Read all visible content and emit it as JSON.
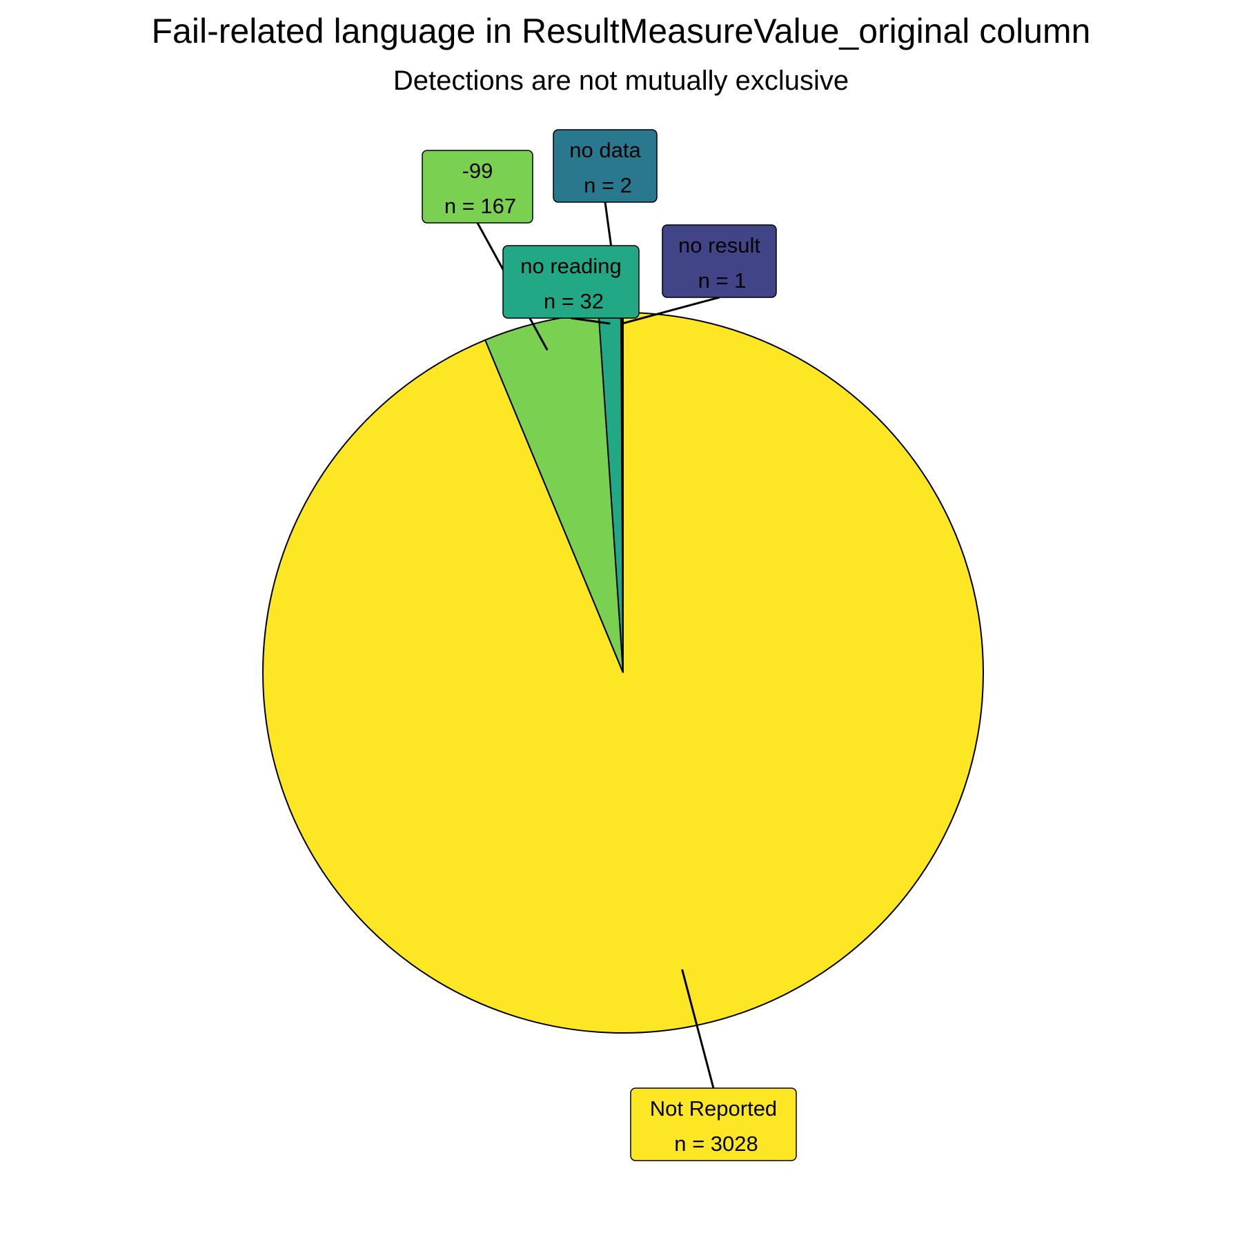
{
  "chart_data": {
    "type": "pie",
    "title": "Fail-related language in ResultMeasureValue_original column",
    "subtitle": "Detections are not mutually exclusive",
    "slices": [
      {
        "label": "no result",
        "count_text": "n = 1",
        "value": 1,
        "color": "#414487"
      },
      {
        "label": "no data",
        "count_text": "n = 2",
        "value": 2,
        "color": "#2A788E"
      },
      {
        "label": "no reading",
        "count_text": "n = 32",
        "value": 32,
        "color": "#22A884"
      },
      {
        "label": "-99",
        "count_text": "n = 167",
        "value": 167,
        "color": "#7AD151"
      },
      {
        "label": "Not Reported",
        "count_text": "n = 3028",
        "value": 3028,
        "color": "#FDE725"
      }
    ],
    "direction": "counterclockwise",
    "start": "top",
    "legend": "none"
  }
}
